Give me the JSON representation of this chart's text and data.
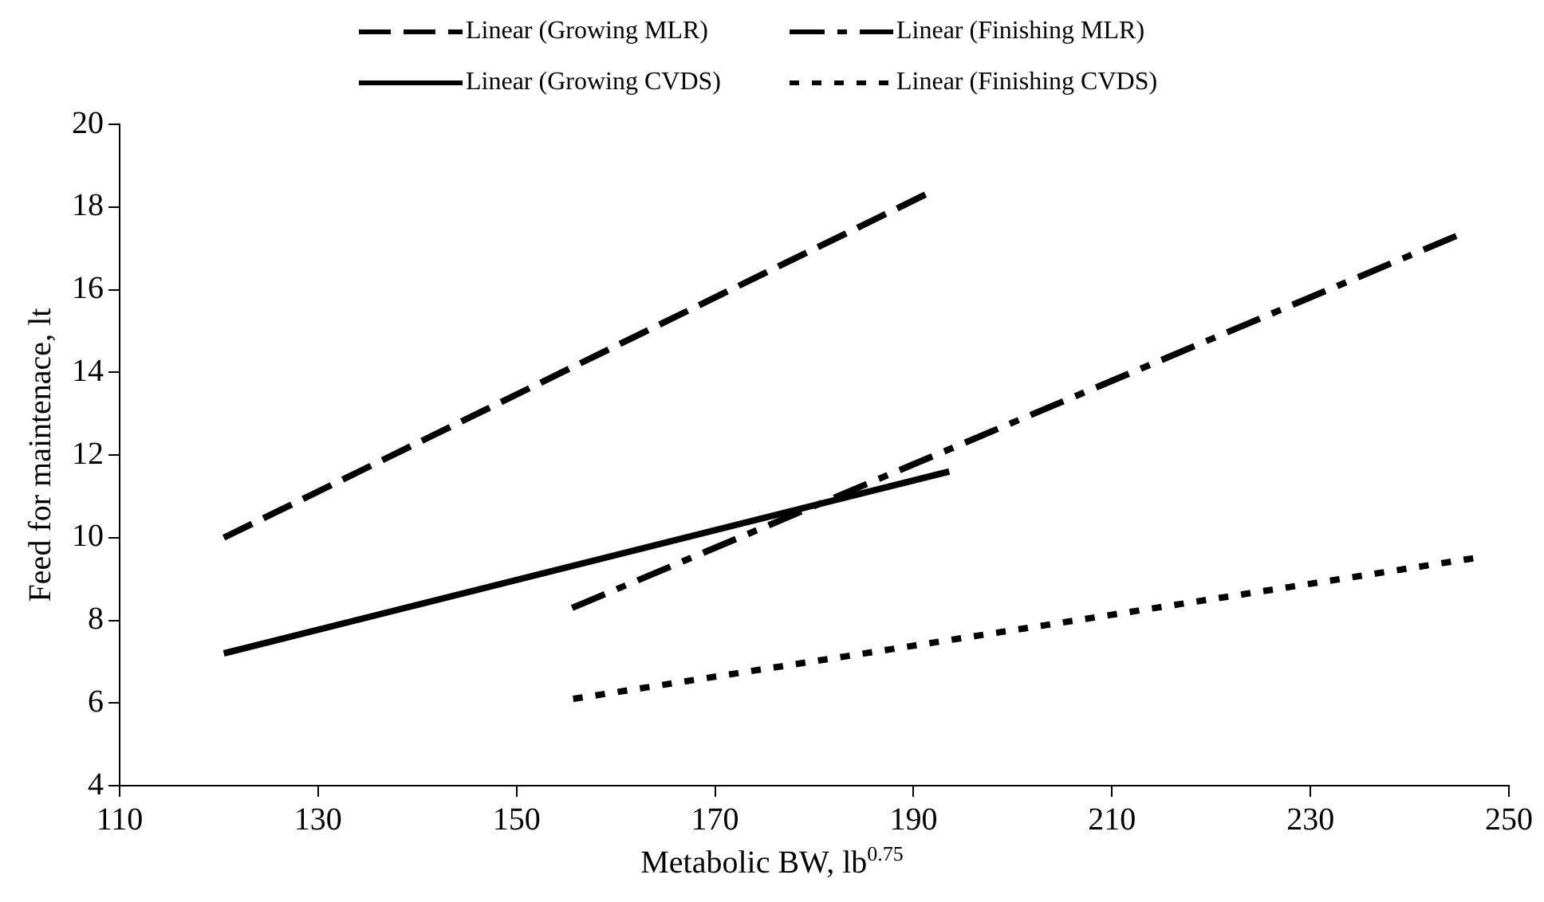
{
  "chart_data": {
    "type": "line",
    "xlabel": "Metabolic BW, lb$^{0.75}$",
    "ylabel": "Feed for maintenace, lt",
    "xlim": [
      110,
      250
    ],
    "xticks": [
      110,
      130,
      150,
      170,
      190,
      210,
      230,
      250
    ],
    "ylim": [
      4,
      20
    ],
    "yticks": [
      4,
      6,
      8,
      10,
      12,
      14,
      16,
      18,
      20
    ],
    "grid": false,
    "legend": "top",
    "marker": "none",
    "series": [
      {
        "name": "Linear (Growing MLR)",
        "color": "#000000",
        "line_style": "dashed",
        "x": [
          120.5,
          191.2
        ],
        "values": [
          10.0,
          18.3
        ]
      },
      {
        "name": "Linear (Finishing MLR)",
        "color": "#000000",
        "line_style": "dashdot",
        "x": [
          155.6,
          244.7
        ],
        "values": [
          8.3,
          17.3
        ]
      },
      {
        "name": "Linear (Growing CVDS)",
        "color": "#000000",
        "line_style": "solid",
        "x": [
          120.5,
          193.6
        ],
        "values": [
          7.2,
          11.6
        ]
      },
      {
        "name": "Linear (Finishing CVDS)",
        "color": "#000000",
        "line_style": "dotted",
        "x": [
          155.7,
          246.4
        ],
        "values": [
          6.1,
          9.5
        ]
      }
    ]
  }
}
